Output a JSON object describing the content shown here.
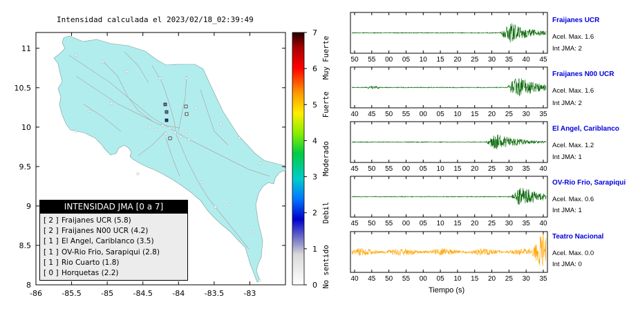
{
  "map": {
    "title": "Intensidad calculada el 2023/02/18_02:39:49",
    "x_ticks": [
      "-86",
      "-85.5",
      "-85",
      "-84.5",
      "-84",
      "-83.5",
      "-83"
    ],
    "y_ticks": [
      "8",
      "8.5",
      "9",
      "9.5",
      "10",
      "10.5",
      "11"
    ],
    "xlim": [
      -86,
      -82.5
    ],
    "ylim": [
      8,
      11.2
    ],
    "colorbar": {
      "ticks": [
        "0",
        "1",
        "2",
        "3",
        "4",
        "5",
        "6",
        "7"
      ],
      "class_labels": [
        "No sentido",
        "Debil",
        "Moderado",
        "Fuerte",
        "Muy Fuerte"
      ]
    },
    "legend": {
      "header": "INTENSIDAD JMA [0 a 7]",
      "rows": [
        {
          "jma": "[ 2 ]",
          "name": "Fraijanes UCR (5.8)"
        },
        {
          "jma": "[ 2 ]",
          "name": "Fraijanes N00 UCR (4.2)"
        },
        {
          "jma": "[ 1 ]",
          "name": "El Angel, Cariblanco (3.5)"
        },
        {
          "jma": "[ 1 ]",
          "name": "OV-Rio Frio, Sarapiqui (2.8)"
        },
        {
          "jma": "[ 1 ]",
          "name": "Rio Cuarto (1.8)"
        },
        {
          "jma": "[ 0 ]",
          "name": "Horquetas (2.2)"
        }
      ]
    },
    "colors": {
      "land": "#b2eded",
      "roads": "#a8a8a8",
      "stations_fill": "#ffffff"
    }
  },
  "waveforms": {
    "xlabel": "Tiempo (s)",
    "panels": [
      {
        "name": "Fraijanes UCR",
        "accel": "Acel. Max. 1.6",
        "jma": "Int JMA: 2",
        "ticks": [
          "50",
          "55",
          "00",
          "05",
          "10",
          "15",
          "20",
          "25",
          "30",
          "35",
          "40",
          "45"
        ],
        "color": "#006400",
        "onset": 0.76,
        "amp": 0.85
      },
      {
        "name": "Fraijanes N00 UCR",
        "accel": "Acel. Max. 1.6",
        "jma": "Int JMA: 2",
        "ticks": [
          "40",
          "45",
          "50",
          "55",
          "00",
          "05",
          "10",
          "15",
          "20",
          "25",
          "30",
          "35"
        ],
        "color": "#006400",
        "onset": 0.8,
        "amp": 0.9
      },
      {
        "name": "El Angel, Cariblanco",
        "accel": "Acel. Max. 1.2",
        "jma": "Int JMA: 1",
        "ticks": [
          "45",
          "50",
          "55",
          "00",
          "05",
          "10",
          "15",
          "20",
          "25",
          "30",
          "35",
          "40"
        ],
        "color": "#006400",
        "onset": 0.69,
        "amp": 0.7
      },
      {
        "name": "OV-Rio Frio, Sarapiqui",
        "accel": "Acel. Max. 0.6",
        "jma": "Int JMA: 1",
        "ticks": [
          "45",
          "50",
          "55",
          "00",
          "05",
          "10",
          "15",
          "20",
          "25",
          "30",
          "35",
          "40"
        ],
        "color": "#006400",
        "onset": 0.82,
        "amp": 0.85
      },
      {
        "name": "Teatro Nacional",
        "accel": "Acel. Max. 0.0",
        "jma": "Int JMA: 0",
        "ticks": [
          "40",
          "45",
          "50",
          "55",
          "00",
          "05",
          "10",
          "15",
          "20",
          "25",
          "30",
          "35"
        ],
        "color": "#ffa500",
        "onset": 0.92,
        "amp": 0.9
      }
    ]
  }
}
